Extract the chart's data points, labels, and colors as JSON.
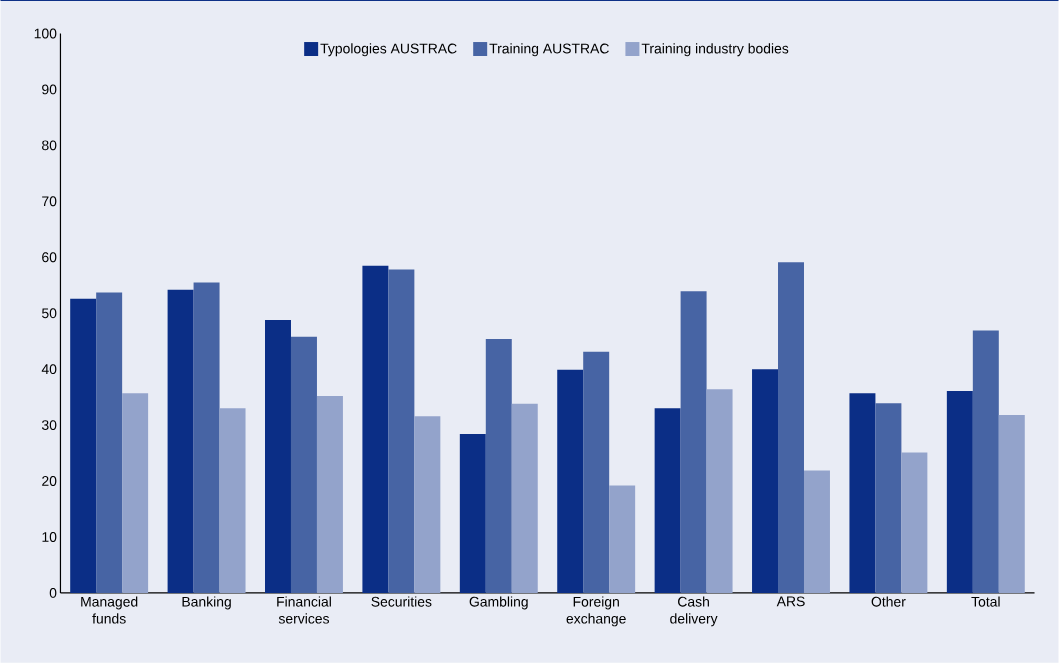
{
  "chart_data": {
    "type": "bar",
    "categories": [
      "Managed funds",
      "Banking",
      "Financial services",
      "Securities",
      "Gambling",
      "Foreign exchange",
      "Cash delivery",
      "ARS",
      "Other",
      "Total"
    ],
    "series": [
      {
        "name": "Typologies AUSTRAC",
        "color": "#0b2e86",
        "values": [
          52.6,
          54.2,
          48.8,
          58.5,
          28.4,
          39.9,
          33.0,
          40.0,
          35.7,
          36.1
        ]
      },
      {
        "name": "Training AUSTRAC",
        "color": "#4764a4",
        "values": [
          53.7,
          55.5,
          45.8,
          57.8,
          45.4,
          43.1,
          53.9,
          59.1,
          33.9,
          46.9
        ]
      },
      {
        "name": "Training industry bodies",
        "color": "#93a3cb",
        "values": [
          35.7,
          33.0,
          35.2,
          31.6,
          33.8,
          19.2,
          36.4,
          21.9,
          25.1,
          31.8
        ]
      }
    ],
    "ylim": [
      0,
      100
    ],
    "yticks": [
      0,
      10,
      20,
      30,
      40,
      50,
      60,
      70,
      80,
      90,
      100
    ],
    "grid": false,
    "legend": "top"
  }
}
